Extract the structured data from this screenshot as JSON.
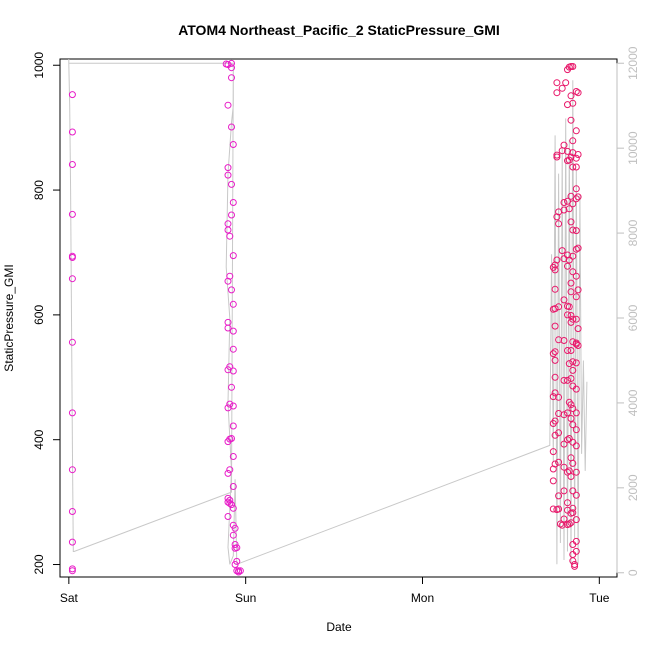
{
  "chart_data": {
    "type": "scatter",
    "title": "ATOM4 Northeast_Pacific_2 StaticPressure_GMI",
    "xlabel": "Date",
    "ylabel": "StaticPressure_GMI",
    "x_axis": {
      "range_days": [
        -0.05,
        3.1
      ],
      "ticks": [
        {
          "value": 0,
          "label": "Sat"
        },
        {
          "value": 1,
          "label": "Sun"
        },
        {
          "value": 2,
          "label": "Mon"
        },
        {
          "value": 3,
          "label": "Tue"
        }
      ]
    },
    "y_axis_left": {
      "range": [
        180,
        1010
      ],
      "ticks": [
        200,
        400,
        600,
        800,
        1000
      ]
    },
    "y_axis_right": {
      "range": [
        -100,
        12100
      ],
      "ticks": [
        0,
        2000,
        4000,
        6000,
        8000,
        10000,
        12000
      ],
      "color": "#bfbfbf"
    },
    "grid": false,
    "colors": {
      "line": "#c8c8c8",
      "points_early": "#e81cc8",
      "points_late": "#e8186a"
    },
    "series": [
      {
        "style": "points",
        "y_axis": "left",
        "points": [
          [
            0.02,
            190
          ],
          [
            0.02,
            193
          ],
          [
            0.02,
            236
          ],
          [
            0.02,
            285
          ],
          [
            0.02,
            352
          ],
          [
            0.02,
            443
          ],
          [
            0.02,
            556
          ],
          [
            0.02,
            658
          ],
          [
            0.02,
            692
          ],
          [
            0.02,
            694
          ],
          [
            0.02,
            761
          ],
          [
            0.02,
            841
          ],
          [
            0.02,
            893
          ],
          [
            0.02,
            953
          ],
          [
            0.89,
            1002
          ],
          [
            0.9,
            1001
          ],
          [
            0.92,
            1003
          ],
          [
            0.92,
            996
          ],
          [
            0.92,
            980
          ],
          [
            0.9,
            936
          ],
          [
            0.92,
            901
          ],
          [
            0.93,
            873
          ],
          [
            0.9,
            836
          ],
          [
            0.9,
            824
          ],
          [
            0.92,
            809
          ],
          [
            0.93,
            780
          ],
          [
            0.92,
            760
          ],
          [
            0.9,
            746
          ],
          [
            0.9,
            736
          ],
          [
            0.91,
            726
          ],
          [
            0.93,
            695
          ],
          [
            0.91,
            662
          ],
          [
            0.9,
            654
          ],
          [
            0.92,
            640
          ],
          [
            0.93,
            617
          ],
          [
            0.9,
            588
          ],
          [
            0.9,
            579
          ],
          [
            0.93,
            574
          ],
          [
            0.93,
            545
          ],
          [
            0.91,
            517
          ],
          [
            0.9,
            512
          ],
          [
            0.93,
            510
          ],
          [
            0.92,
            484
          ],
          [
            0.91,
            457
          ],
          [
            0.9,
            451
          ],
          [
            0.93,
            454
          ],
          [
            0.93,
            422
          ],
          [
            0.92,
            402
          ],
          [
            0.91,
            401
          ],
          [
            0.9,
            397
          ],
          [
            0.93,
            373
          ],
          [
            0.91,
            352
          ],
          [
            0.9,
            346
          ],
          [
            0.93,
            325
          ],
          [
            0.9,
            306
          ],
          [
            0.9,
            300
          ],
          [
            0.91,
            303
          ],
          [
            0.91,
            298
          ],
          [
            0.92,
            296
          ],
          [
            0.93,
            290
          ],
          [
            0.9,
            277
          ],
          [
            0.93,
            263
          ],
          [
            0.94,
            258
          ],
          [
            0.93,
            247
          ],
          [
            0.94,
            232
          ],
          [
            0.94,
            226
          ],
          [
            0.95,
            227
          ],
          [
            0.95,
            205
          ],
          [
            0.94,
            200
          ],
          [
            0.95,
            190
          ],
          [
            0.96,
            190
          ],
          [
            0.97,
            190
          ],
          [
            0.96,
            188
          ],
          [
            2.74,
            676
          ],
          [
            2.74,
            609
          ],
          [
            2.74,
            538
          ],
          [
            2.74,
            469
          ],
          [
            2.74,
            426
          ],
          [
            2.74,
            381
          ],
          [
            2.74,
            353
          ],
          [
            2.74,
            334
          ],
          [
            2.74,
            289
          ],
          [
            2.75,
            680
          ],
          [
            2.75,
            672
          ],
          [
            2.75,
            641
          ],
          [
            2.75,
            610
          ],
          [
            2.75,
            582
          ],
          [
            2.75,
            541
          ],
          [
            2.75,
            527
          ],
          [
            2.75,
            500
          ],
          [
            2.75,
            475
          ],
          [
            2.75,
            430
          ],
          [
            2.75,
            407
          ],
          [
            2.75,
            361
          ],
          [
            2.76,
            956
          ],
          [
            2.76,
            972
          ],
          [
            2.76,
            853
          ],
          [
            2.76,
            856
          ],
          [
            2.76,
            757
          ],
          [
            2.76,
            688
          ],
          [
            2.77,
            765
          ],
          [
            2.77,
            746
          ],
          [
            2.77,
            613
          ],
          [
            2.77,
            560
          ],
          [
            2.77,
            468
          ],
          [
            2.77,
            442
          ],
          [
            2.77,
            411
          ],
          [
            2.77,
            364
          ],
          [
            2.77,
            310
          ],
          [
            2.76,
            288
          ],
          [
            2.77,
            289
          ],
          [
            2.78,
            265
          ],
          [
            2.79,
            263
          ],
          [
            2.79,
            963
          ],
          [
            2.79,
            863
          ],
          [
            2.8,
            872
          ],
          [
            2.8,
            780
          ],
          [
            2.8,
            768
          ],
          [
            2.79,
            703
          ],
          [
            2.8,
            690
          ],
          [
            2.8,
            624
          ],
          [
            2.8,
            559
          ],
          [
            2.8,
            495
          ],
          [
            2.8,
            440
          ],
          [
            2.8,
            393
          ],
          [
            2.8,
            356
          ],
          [
            2.8,
            318
          ],
          [
            2.8,
            273
          ],
          [
            2.82,
            264
          ],
          [
            2.83,
            265
          ],
          [
            2.82,
            287
          ],
          [
            2.81,
            972
          ],
          [
            2.82,
            937
          ],
          [
            2.82,
            862
          ],
          [
            2.82,
            847
          ],
          [
            2.82,
            782
          ],
          [
            2.82,
            696
          ],
          [
            2.82,
            678
          ],
          [
            2.82,
            614
          ],
          [
            2.82,
            600
          ],
          [
            2.82,
            543
          ],
          [
            2.82,
            495
          ],
          [
            2.82,
            443
          ],
          [
            2.82,
            400
          ],
          [
            2.82,
            348
          ],
          [
            2.82,
            299
          ],
          [
            2.82,
            993
          ],
          [
            2.83,
            997
          ],
          [
            2.83,
            848
          ],
          [
            2.83,
            770
          ],
          [
            2.83,
            688
          ],
          [
            2.83,
            613
          ],
          [
            2.83,
            522
          ],
          [
            2.83,
            460
          ],
          [
            2.83,
            402
          ],
          [
            2.83,
            350
          ],
          [
            2.84,
            998
          ],
          [
            2.85,
            998
          ],
          [
            2.84,
            951
          ],
          [
            2.84,
            912
          ],
          [
            2.84,
            853
          ],
          [
            2.84,
            790
          ],
          [
            2.84,
            749
          ],
          [
            2.84,
            651
          ],
          [
            2.84,
            637
          ],
          [
            2.84,
            599
          ],
          [
            2.84,
            588
          ],
          [
            2.84,
            543
          ],
          [
            2.84,
            498
          ],
          [
            2.84,
            456
          ],
          [
            2.84,
            434
          ],
          [
            2.84,
            371
          ],
          [
            2.84,
            341
          ],
          [
            2.84,
            282
          ],
          [
            2.84,
            267
          ],
          [
            2.85,
            939
          ],
          [
            2.85,
            879
          ],
          [
            2.85,
            860
          ],
          [
            2.85,
            837
          ],
          [
            2.85,
            778
          ],
          [
            2.85,
            736
          ],
          [
            2.85,
            694
          ],
          [
            2.85,
            669
          ],
          [
            2.85,
            593
          ],
          [
            2.85,
            557
          ],
          [
            2.85,
            525
          ],
          [
            2.85,
            511
          ],
          [
            2.85,
            486
          ],
          [
            2.85,
            450
          ],
          [
            2.85,
            424
          ],
          [
            2.85,
            396
          ],
          [
            2.85,
            362
          ],
          [
            2.85,
            318
          ],
          [
            2.85,
            290
          ],
          [
            2.85,
            283
          ],
          [
            2.85,
            232
          ],
          [
            2.85,
            216
          ],
          [
            2.85,
            206
          ],
          [
            2.86,
            200
          ],
          [
            2.86,
            197
          ],
          [
            2.87,
            958
          ],
          [
            2.87,
            895
          ],
          [
            2.87,
            851
          ],
          [
            2.87,
            837
          ],
          [
            2.87,
            802
          ],
          [
            2.87,
            786
          ],
          [
            2.87,
            735
          ],
          [
            2.87,
            705
          ],
          [
            2.87,
            662
          ],
          [
            2.87,
            629
          ],
          [
            2.87,
            593
          ],
          [
            2.87,
            555
          ],
          [
            2.87,
            553
          ],
          [
            2.87,
            523
          ],
          [
            2.87,
            481
          ],
          [
            2.87,
            443
          ],
          [
            2.87,
            416
          ],
          [
            2.87,
            390
          ],
          [
            2.87,
            348
          ],
          [
            2.87,
            311
          ],
          [
            2.87,
            272
          ],
          [
            2.87,
            237
          ],
          [
            2.87,
            221
          ],
          [
            2.88,
            956
          ],
          [
            2.88,
            857
          ],
          [
            2.88,
            789
          ],
          [
            2.88,
            707
          ],
          [
            2.88,
            640
          ],
          [
            2.88,
            578
          ],
          [
            2.88,
            551
          ]
        ]
      },
      {
        "style": "line",
        "y_axis": "right",
        "points": [
          [
            0.0,
            12100
          ],
          [
            0.0,
            12000
          ],
          [
            0.005,
            11000
          ],
          [
            0.01,
            9000
          ],
          [
            0.015,
            6000
          ],
          [
            0.02,
            3000
          ],
          [
            0.025,
            500
          ],
          [
            0.03,
            500
          ],
          [
            0.92,
            1900
          ],
          [
            0.93,
            12000
          ],
          [
            0.0,
            12000
          ],
          [
            0.93,
            12000
          ],
          [
            0.93,
            11000
          ],
          [
            0.92,
            10600
          ],
          [
            0.9,
            9400
          ],
          [
            0.89,
            7200
          ],
          [
            0.91,
            6000
          ],
          [
            0.9,
            4000
          ],
          [
            0.92,
            2400
          ],
          [
            0.9,
            600
          ],
          [
            0.91,
            200
          ],
          [
            0.93,
            400
          ],
          [
            0.94,
            2200
          ],
          [
            0.95,
            200
          ],
          [
            2.72,
            3000
          ],
          [
            2.73,
            7500
          ],
          [
            2.74,
            2600
          ],
          [
            2.75,
            10300
          ],
          [
            2.76,
            200
          ],
          [
            2.77,
            9400
          ],
          [
            2.78,
            700
          ],
          [
            2.79,
            10000
          ],
          [
            2.8,
            300
          ],
          [
            2.81,
            10700
          ],
          [
            2.82,
            500
          ],
          [
            2.83,
            10200
          ],
          [
            2.84,
            200
          ],
          [
            2.85,
            11600
          ],
          [
            2.86,
            800
          ],
          [
            2.87,
            9500
          ],
          [
            2.88,
            200
          ],
          [
            2.89,
            8900
          ],
          [
            2.9,
            2800
          ],
          [
            2.91,
            5000
          ],
          [
            2.92,
            2400
          ],
          [
            2.93,
            4500
          ]
        ]
      }
    ]
  }
}
